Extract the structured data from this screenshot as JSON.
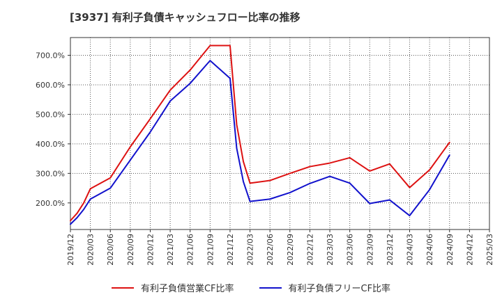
{
  "chart_data": {
    "type": "line",
    "title": "[3937]  有利子負債キャッシュフロー比率の推移",
    "x": [
      "2019/12",
      "2020/03",
      "2020/06",
      "2020/09",
      "2020/12",
      "2021/03",
      "2021/06",
      "2021/09",
      "2021/12",
      "2022/03",
      "2022/06",
      "2022/09",
      "2022/12",
      "2023/03",
      "2023/06",
      "2023/09",
      "2023/12",
      "2024/03",
      "2024/06",
      "2024/09",
      "2024/12",
      "2025/03"
    ],
    "ylim": [
      110,
      760
    ],
    "yticks": [
      200,
      300,
      400,
      500,
      600,
      700
    ],
    "ytick_labels": [
      "200.0%",
      "300.0%",
      "400.0%",
      "500.0%",
      "600.0%",
      "700.0%"
    ],
    "grid": true,
    "legend_position": "bottom",
    "series": [
      {
        "name": "有利子負債営業CF比率",
        "color": "#dd1111",
        "points": [
          [
            "2019/12",
            140
          ],
          [
            "2020/01",
            165
          ],
          [
            "2020/02",
            200
          ],
          [
            "2020/03",
            248
          ],
          [
            "2020/06",
            285
          ],
          [
            "2020/09",
            390
          ],
          [
            "2020/12",
            485
          ],
          [
            "2021/03",
            582
          ],
          [
            "2021/06",
            650
          ],
          [
            "2021/09",
            733
          ],
          [
            "2021/12",
            733
          ],
          [
            "2022/01",
            465
          ],
          [
            "2022/02",
            340
          ],
          [
            "2022/03",
            267
          ],
          [
            "2022/06",
            276
          ],
          [
            "2022/09",
            300
          ],
          [
            "2022/12",
            323
          ],
          [
            "2023/03",
            335
          ],
          [
            "2023/06",
            353
          ],
          [
            "2023/09",
            308
          ],
          [
            "2023/12",
            332
          ],
          [
            "2024/03",
            252
          ],
          [
            "2024/06",
            312
          ],
          [
            "2024/09",
            405
          ]
        ]
      },
      {
        "name": "有利子負債フリーCF比率",
        "color": "#1111cc",
        "points": [
          [
            "2019/12",
            128
          ],
          [
            "2020/01",
            150
          ],
          [
            "2020/02",
            178
          ],
          [
            "2020/03",
            213
          ],
          [
            "2020/06",
            250
          ],
          [
            "2020/09",
            345
          ],
          [
            "2020/12",
            440
          ],
          [
            "2021/03",
            545
          ],
          [
            "2021/06",
            605
          ],
          [
            "2021/09",
            682
          ],
          [
            "2021/12",
            622
          ],
          [
            "2022/01",
            385
          ],
          [
            "2022/02",
            272
          ],
          [
            "2022/03",
            205
          ],
          [
            "2022/06",
            213
          ],
          [
            "2022/09",
            235
          ],
          [
            "2022/12",
            266
          ],
          [
            "2023/03",
            290
          ],
          [
            "2023/06",
            267
          ],
          [
            "2023/09",
            198
          ],
          [
            "2023/12",
            210
          ],
          [
            "2024/03",
            157
          ],
          [
            "2024/06",
            245
          ],
          [
            "2024/09",
            362
          ]
        ]
      }
    ]
  }
}
